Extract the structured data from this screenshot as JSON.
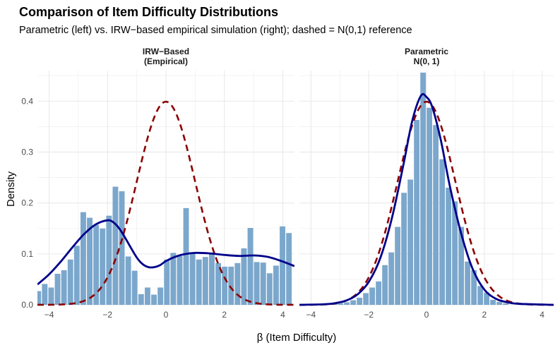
{
  "chart_data": {
    "type": "bar",
    "title": "Comparison of Item Difficulty Distributions",
    "subtitle": "Parametric (left) vs. IRW−based empirical simulation (right); dashed = N(0,1) reference",
    "xlabel": "β (Item Difficulty)",
    "ylabel": "Density",
    "xlim": [
      -4.4,
      4.4
    ],
    "ylim": [
      0,
      0.46
    ],
    "x_ticks": [
      -4,
      -2,
      0,
      2,
      4
    ],
    "x_tick_labels": [
      "−4",
      "−2",
      "0",
      "2",
      "4"
    ],
    "y_ticks": [
      0,
      0.1,
      0.2,
      0.3,
      0.4
    ],
    "y_tick_labels": [
      "0.0",
      "0.1",
      "0.2",
      "0.3",
      "0.4"
    ],
    "grid": true,
    "colors": {
      "bars": "#7ba7cc",
      "density": "#00008b",
      "reference": "#8b0000",
      "grid": "#ebebeb"
    },
    "panels": [
      {
        "strip_label": [
          "IRW−Based",
          "(Empirical)"
        ],
        "bin_width": 0.22,
        "bins": [
          [
            -4.37,
            0.027
          ],
          [
            -4.15,
            0.041
          ],
          [
            -3.93,
            0.034
          ],
          [
            -3.71,
            0.061
          ],
          [
            -3.49,
            0.068
          ],
          [
            -3.27,
            0.089
          ],
          [
            -3.05,
            0.116
          ],
          [
            -2.83,
            0.182
          ],
          [
            -2.61,
            0.171
          ],
          [
            -2.39,
            0.157
          ],
          [
            -2.17,
            0.15
          ],
          [
            -1.95,
            0.175
          ],
          [
            -1.73,
            0.232
          ],
          [
            -1.51,
            0.223
          ],
          [
            -1.29,
            0.095
          ],
          [
            -1.07,
            0.067
          ],
          [
            -0.85,
            0.021
          ],
          [
            -0.63,
            0.034
          ],
          [
            -0.41,
            0.02
          ],
          [
            -0.19,
            0.034
          ],
          [
            0.03,
            0.089
          ],
          [
            0.25,
            0.102
          ],
          [
            0.47,
            0.096
          ],
          [
            0.69,
            0.19
          ],
          [
            0.91,
            0.103
          ],
          [
            1.13,
            0.089
          ],
          [
            1.35,
            0.094
          ],
          [
            1.57,
            0.102
          ],
          [
            1.79,
            0.082
          ],
          [
            2.01,
            0.075
          ],
          [
            2.23,
            0.075
          ],
          [
            2.45,
            0.082
          ],
          [
            2.67,
            0.111
          ],
          [
            2.89,
            0.151
          ],
          [
            3.11,
            0.084
          ],
          [
            3.33,
            0.083
          ],
          [
            3.55,
            0.062
          ],
          [
            3.77,
            0.077
          ],
          [
            3.99,
            0.154
          ],
          [
            4.21,
            0.141
          ]
        ],
        "density": [
          [
            -4.4,
            0.04
          ],
          [
            -4.0,
            0.06
          ],
          [
            -3.6,
            0.085
          ],
          [
            -3.2,
            0.113
          ],
          [
            -2.8,
            0.139
          ],
          [
            -2.4,
            0.158
          ],
          [
            -2.0,
            0.166
          ],
          [
            -1.8,
            0.162
          ],
          [
            -1.6,
            0.15
          ],
          [
            -1.4,
            0.132
          ],
          [
            -1.2,
            0.112
          ],
          [
            -1.0,
            0.093
          ],
          [
            -0.8,
            0.08
          ],
          [
            -0.6,
            0.074
          ],
          [
            -0.4,
            0.074
          ],
          [
            -0.2,
            0.078
          ],
          [
            0.0,
            0.086
          ],
          [
            0.3,
            0.094
          ],
          [
            0.6,
            0.099
          ],
          [
            1.0,
            0.102
          ],
          [
            1.5,
            0.101
          ],
          [
            2.0,
            0.098
          ],
          [
            2.5,
            0.096
          ],
          [
            3.0,
            0.097
          ],
          [
            3.5,
            0.094
          ],
          [
            4.0,
            0.085
          ],
          [
            4.4,
            0.076
          ]
        ]
      },
      {
        "strip_label": [
          "Parametric",
          "N(0, 1)"
        ],
        "bin_width": 0.22,
        "bins": [
          [
            -3.2,
            0.002
          ],
          [
            -2.98,
            0.003
          ],
          [
            -2.76,
            0.005
          ],
          [
            -2.54,
            0.009
          ],
          [
            -2.32,
            0.014
          ],
          [
            -2.1,
            0.023
          ],
          [
            -1.88,
            0.034
          ],
          [
            -1.66,
            0.046
          ],
          [
            -1.44,
            0.078
          ],
          [
            -1.22,
            0.103
          ],
          [
            -1.0,
            0.153
          ],
          [
            -0.78,
            0.22
          ],
          [
            -0.56,
            0.246
          ],
          [
            -0.34,
            0.363
          ],
          [
            -0.12,
            0.456
          ],
          [
            0.1,
            0.387
          ],
          [
            0.32,
            0.353
          ],
          [
            0.54,
            0.286
          ],
          [
            0.76,
            0.23
          ],
          [
            0.98,
            0.203
          ],
          [
            1.2,
            0.153
          ],
          [
            1.42,
            0.085
          ],
          [
            1.64,
            0.068
          ],
          [
            1.86,
            0.037
          ],
          [
            2.08,
            0.024
          ],
          [
            2.3,
            0.01
          ],
          [
            2.52,
            0.006
          ],
          [
            2.74,
            0.003
          ]
        ],
        "density": [
          [
            -4.4,
            0.0
          ],
          [
            -3.6,
            0.001
          ],
          [
            -3.2,
            0.003
          ],
          [
            -2.8,
            0.008
          ],
          [
            -2.4,
            0.02
          ],
          [
            -2.0,
            0.045
          ],
          [
            -1.6,
            0.092
          ],
          [
            -1.2,
            0.17
          ],
          [
            -0.8,
            0.275
          ],
          [
            -0.5,
            0.36
          ],
          [
            -0.2,
            0.41
          ],
          [
            0.0,
            0.408
          ],
          [
            0.2,
            0.388
          ],
          [
            0.5,
            0.322
          ],
          [
            0.8,
            0.235
          ],
          [
            1.2,
            0.14
          ],
          [
            1.6,
            0.07
          ],
          [
            2.0,
            0.03
          ],
          [
            2.4,
            0.012
          ],
          [
            2.8,
            0.005
          ],
          [
            3.2,
            0.002
          ],
          [
            4.4,
            0.0
          ]
        ]
      }
    ]
  }
}
